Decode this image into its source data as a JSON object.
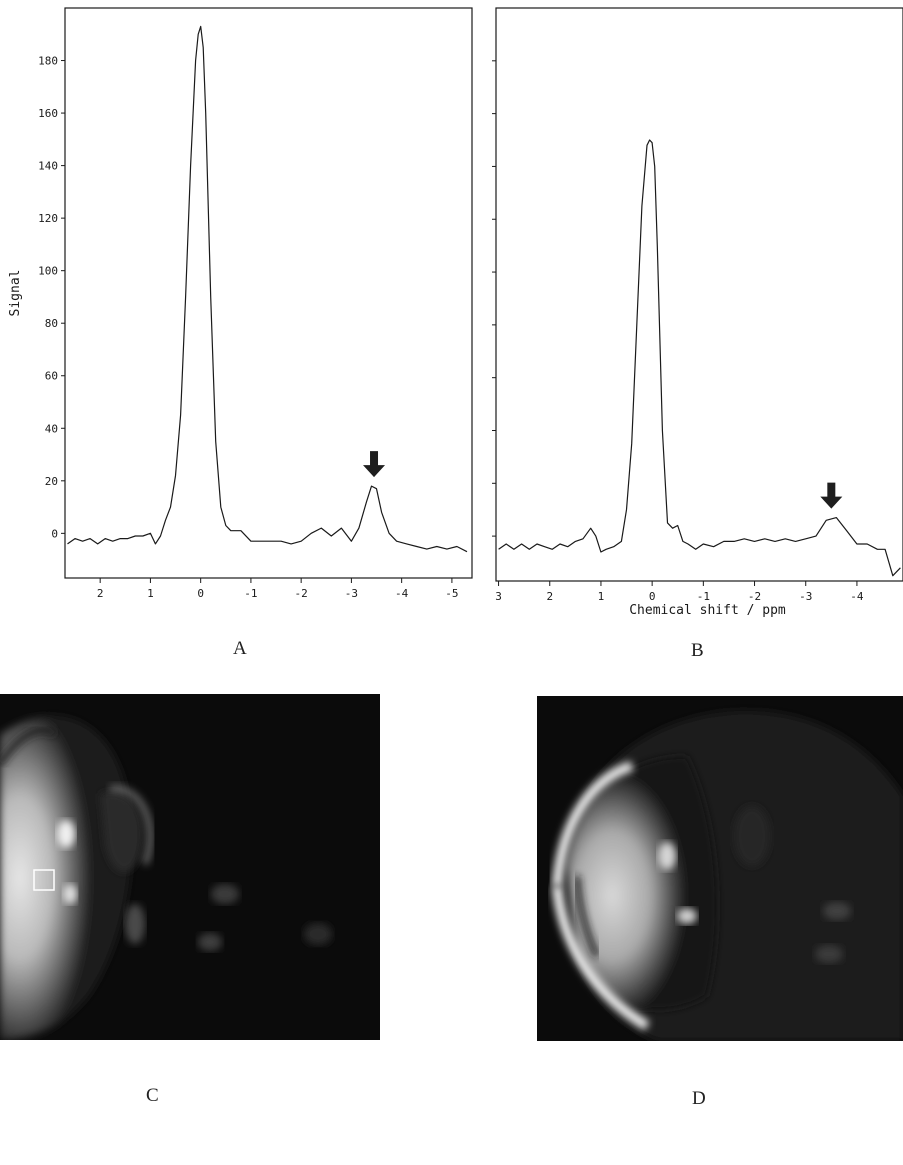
{
  "panels": {
    "A": {
      "letter": "A"
    },
    "B": {
      "letter": "B"
    },
    "C": {
      "letter": "C"
    },
    "D": {
      "letter": "D"
    }
  },
  "chart_data": [
    {
      "type": "line",
      "panel": "A",
      "title": "",
      "xlabel": "",
      "ylabel": "Signal",
      "xlim": [
        2.7,
        -5.4
      ],
      "ylim": [
        -17,
        200
      ],
      "x_reversed": true,
      "xticks": [
        2,
        1,
        0,
        -1,
        -2,
        -3,
        -4,
        -5
      ],
      "xtick_labels": [
        "2",
        "1",
        "0",
        "-1",
        "-2",
        "-3",
        "-4",
        "-5"
      ],
      "yticks": [
        0,
        20,
        40,
        60,
        80,
        100,
        120,
        140,
        160,
        180
      ],
      "ytick_labels": [
        "0",
        "20",
        "40",
        "60",
        "80",
        "100",
        "120",
        "140",
        "160",
        "180"
      ],
      "grid": false,
      "series": [
        {
          "x": [
            2.65,
            2.5,
            2.35,
            2.2,
            2.05,
            1.9,
            1.75,
            1.6,
            1.45,
            1.3,
            1.15,
            1.0,
            0.9,
            0.8,
            0.7,
            0.6,
            0.5,
            0.4,
            0.3,
            0.2,
            0.1,
            0.05,
            0.0,
            -0.05,
            -0.1,
            -0.2,
            -0.3,
            -0.4,
            -0.5,
            -0.6,
            -0.8,
            -1.0,
            -1.2,
            -1.4,
            -1.6,
            -1.8,
            -2.0,
            -2.2,
            -2.4,
            -2.6,
            -2.8,
            -3.0,
            -3.15,
            -3.3,
            -3.4,
            -3.5,
            -3.6,
            -3.75,
            -3.9,
            -4.1,
            -4.3,
            -4.5,
            -4.7,
            -4.9,
            -5.1,
            -5.3
          ],
          "y": [
            -4,
            -2,
            -3,
            -2,
            -4,
            -2,
            -3,
            -2,
            -2,
            -1,
            -1,
            0,
            -4,
            -1,
            5,
            10,
            22,
            45,
            90,
            140,
            180,
            190,
            193,
            185,
            160,
            90,
            35,
            10,
            3,
            1,
            1,
            -3,
            -3,
            -3,
            -3,
            -4,
            -3,
            0,
            2,
            -1,
            2,
            -3,
            2,
            12,
            18,
            17,
            8,
            0,
            -3,
            -4,
            -5,
            -6,
            -5,
            -6,
            -5,
            -7
          ]
        }
      ],
      "annotations": [
        {
          "type": "arrow-down",
          "x": -3.45,
          "y": 18
        }
      ]
    },
    {
      "type": "line",
      "panel": "B",
      "title": "",
      "xlabel": "Chemical shift / ppm",
      "ylabel": "",
      "xlim": [
        3.05,
        -4.9
      ],
      "ylim": [
        -17,
        200
      ],
      "x_reversed": true,
      "xticks": [
        3,
        2,
        1,
        0,
        -1,
        -2,
        -3,
        -4
      ],
      "xtick_labels": [
        "3",
        "2",
        "1",
        "0",
        "-1",
        "-2",
        "-3",
        "-4"
      ],
      "yticks": [
        0,
        20,
        40,
        60,
        80,
        100,
        120,
        140,
        160,
        180
      ],
      "grid": false,
      "series": [
        {
          "x": [
            3.0,
            2.85,
            2.7,
            2.55,
            2.4,
            2.25,
            2.1,
            1.95,
            1.8,
            1.65,
            1.5,
            1.35,
            1.2,
            1.1,
            1.0,
            0.9,
            0.75,
            0.6,
            0.5,
            0.4,
            0.3,
            0.2,
            0.1,
            0.05,
            0.0,
            -0.05,
            -0.1,
            -0.2,
            -0.3,
            -0.4,
            -0.5,
            -0.6,
            -0.7,
            -0.85,
            -1.0,
            -1.2,
            -1.4,
            -1.6,
            -1.8,
            -2.0,
            -2.2,
            -2.4,
            -2.6,
            -2.8,
            -3.0,
            -3.2,
            -3.4,
            -3.6,
            -3.8,
            -4.0,
            -4.2,
            -4.4,
            -4.55,
            -4.7,
            -4.85
          ],
          "y": [
            -5,
            -3,
            -5,
            -3,
            -5,
            -3,
            -4,
            -5,
            -3,
            -4,
            -2,
            -1,
            3,
            0,
            -6,
            -5,
            -4,
            -2,
            10,
            35,
            80,
            125,
            148,
            150,
            149,
            140,
            110,
            40,
            5,
            3,
            4,
            -2,
            -3,
            -5,
            -3,
            -4,
            -2,
            -2,
            -1,
            -2,
            -1,
            -2,
            -1,
            -2,
            -1,
            0,
            6,
            7,
            2,
            -3,
            -3,
            -5,
            -5,
            -15,
            -12
          ]
        }
      ],
      "annotations": [
        {
          "type": "arrow-down",
          "x": -3.5,
          "y": 7
        }
      ]
    }
  ]
}
